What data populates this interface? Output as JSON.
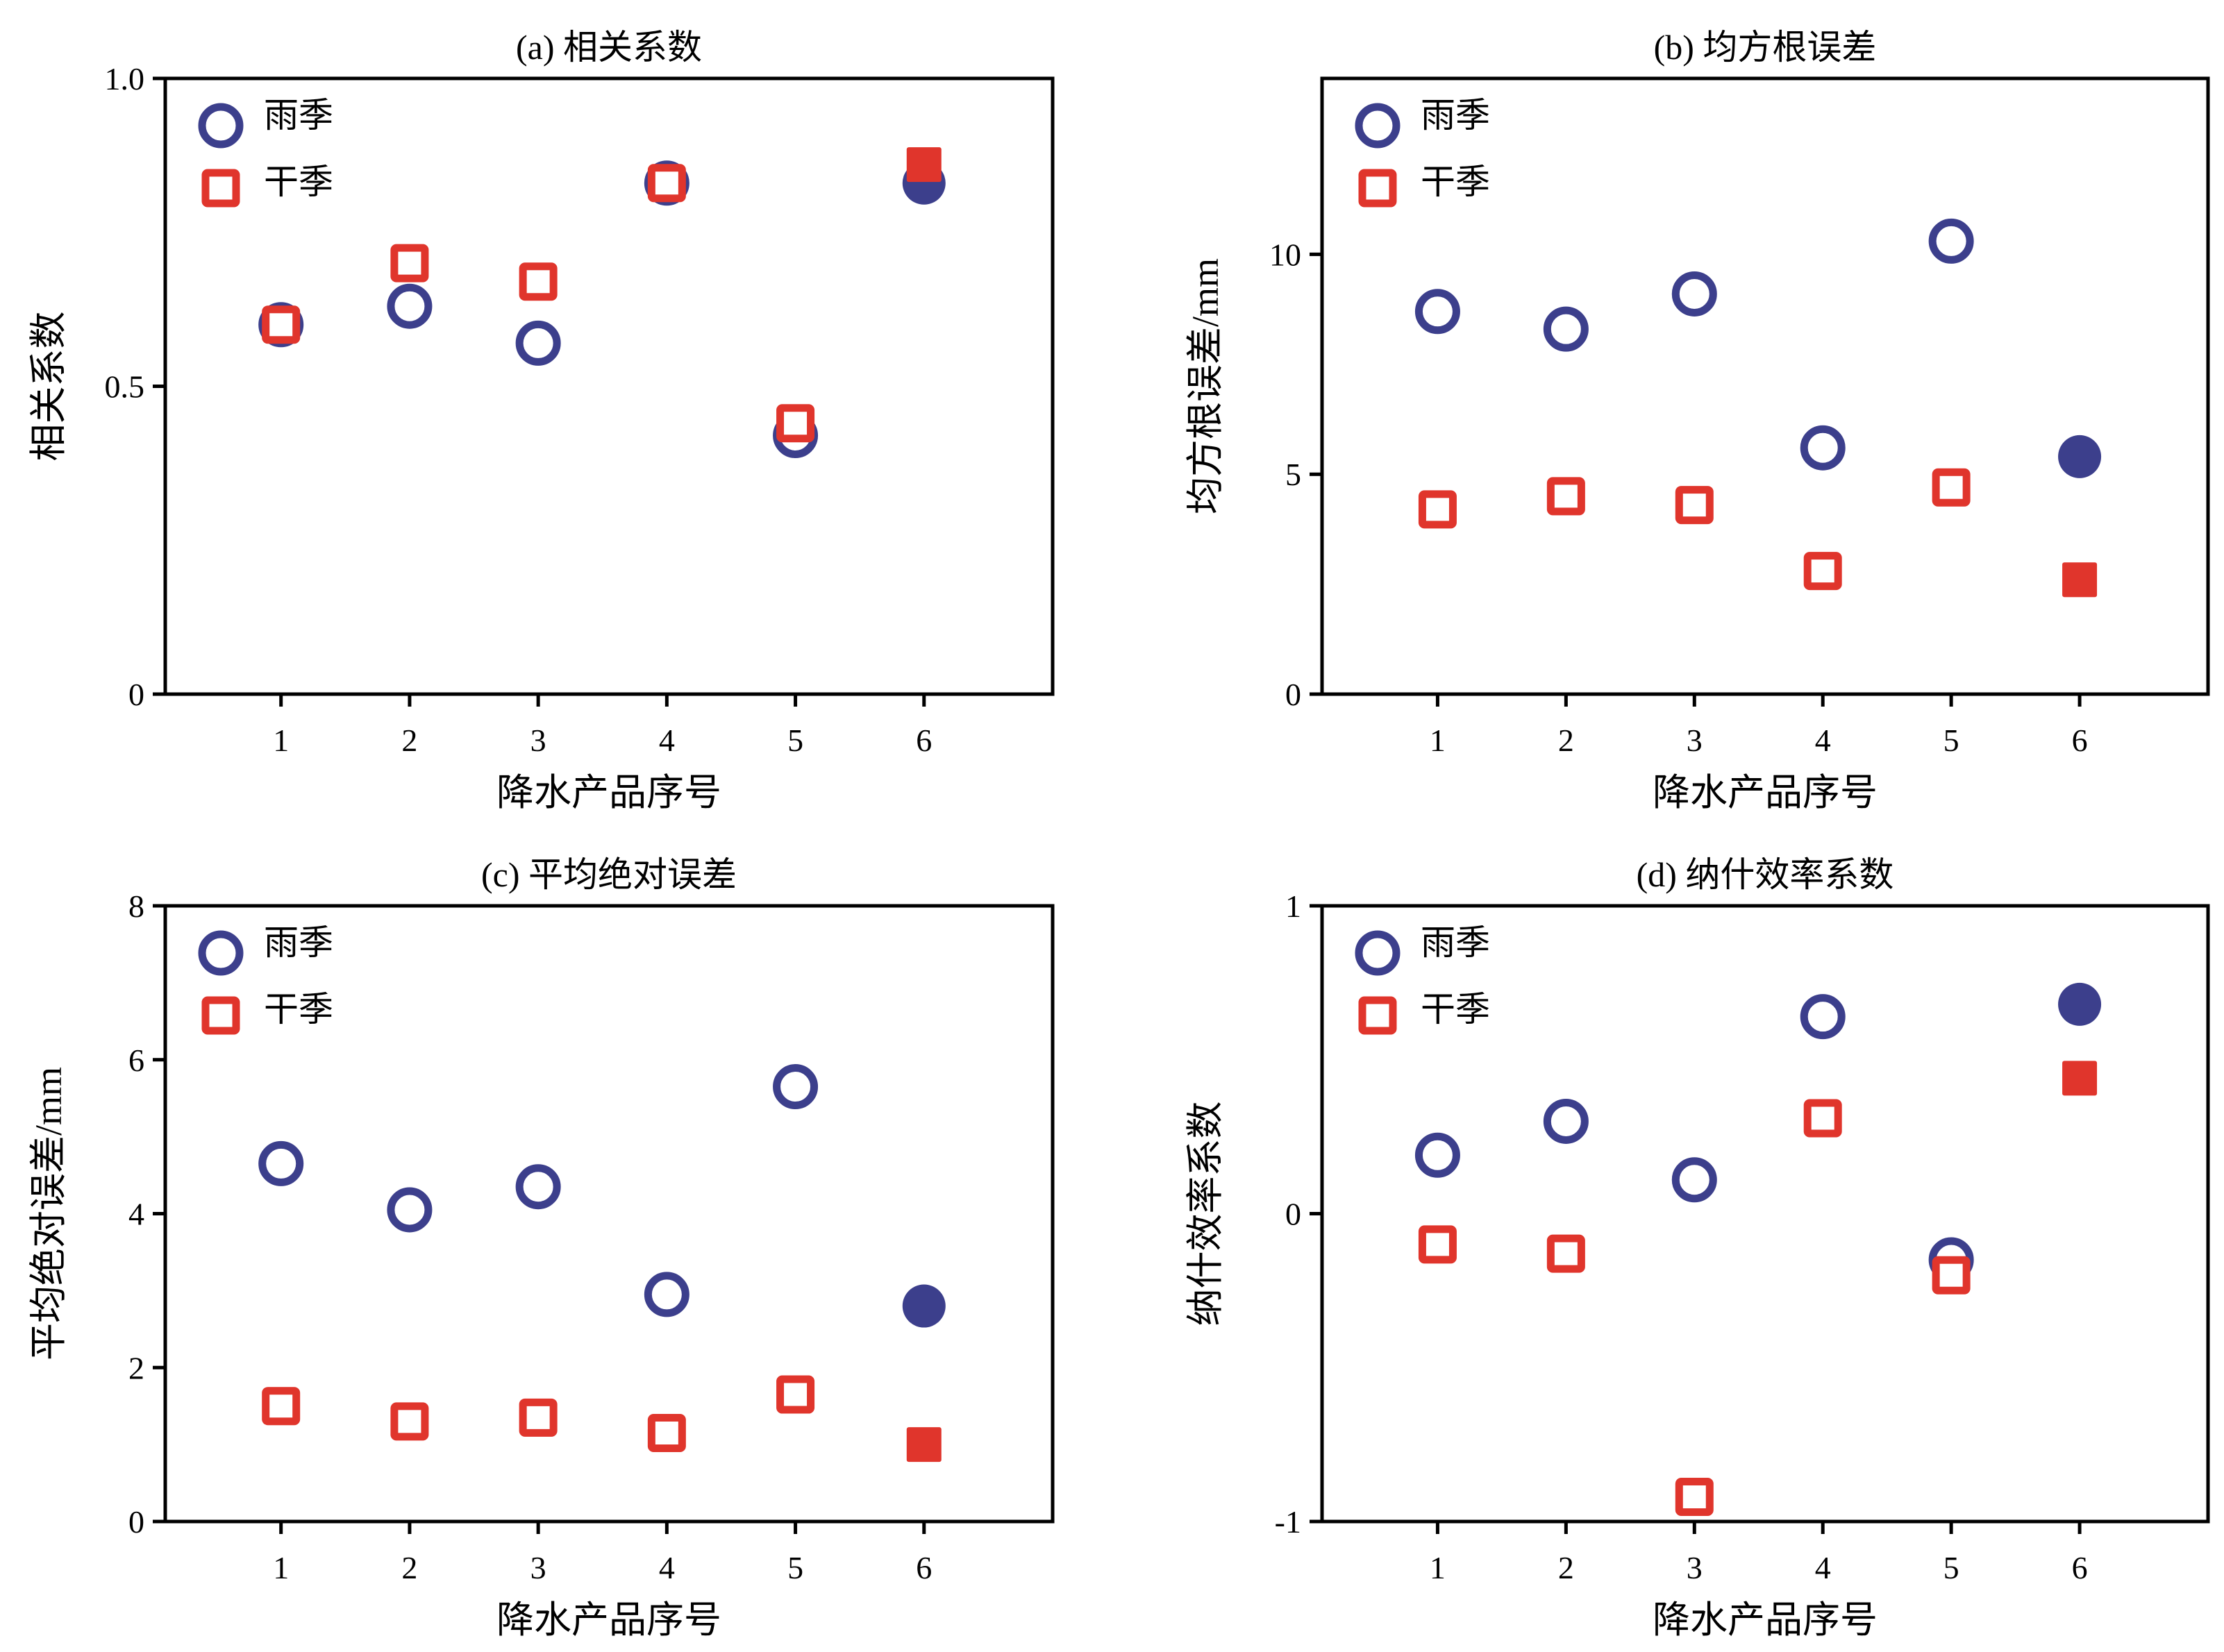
{
  "legend": {
    "rainy_label": "雨季",
    "dry_label": "干季"
  },
  "colors": {
    "rainy": "#3c3f8c",
    "dry": "#e0352c",
    "axis": "#000000"
  },
  "markers": {
    "rainy": "open-circle; filled-circle for product 6",
    "dry": "open-square; filled-square for product 6"
  },
  "chart_data": [
    {
      "id": "a",
      "type": "scatter",
      "title": "(a) 相关系数",
      "xlabel": "降水产品序号",
      "ylabel": "相关系数",
      "x": [
        1,
        2,
        3,
        4,
        5,
        6
      ],
      "x_ticks": [
        "1",
        "2",
        "3",
        "4",
        "5",
        "6"
      ],
      "xlim": [
        0.1,
        7.0
      ],
      "ylim": [
        0,
        1.0
      ],
      "y_ticks": [
        0,
        0.5,
        1.0
      ],
      "y_tick_labels": [
        "0",
        "0.5",
        "1.0"
      ],
      "legend_position": "top-left",
      "grid": false,
      "series": [
        {
          "name": "雨季",
          "values": [
            0.6,
            0.63,
            0.57,
            0.83,
            0.42,
            0.83
          ]
        },
        {
          "name": "干季",
          "values": [
            0.6,
            0.7,
            0.67,
            0.83,
            0.44,
            0.86
          ]
        }
      ]
    },
    {
      "id": "b",
      "type": "scatter",
      "title": "(b) 均方根误差",
      "xlabel": "降水产品序号",
      "ylabel": "均方根误差/mm",
      "x": [
        1,
        2,
        3,
        4,
        5,
        6
      ],
      "x_ticks": [
        "1",
        "2",
        "3",
        "4",
        "5",
        "6"
      ],
      "xlim": [
        0.1,
        7.0
      ],
      "ylim": [
        0,
        14
      ],
      "y_ticks": [
        0,
        5,
        10
      ],
      "y_tick_labels": [
        "0",
        "5",
        "10"
      ],
      "legend_position": "top-left",
      "grid": false,
      "series": [
        {
          "name": "雨季",
          "values": [
            8.7,
            8.3,
            9.1,
            5.6,
            10.3,
            5.4
          ]
        },
        {
          "name": "干季",
          "values": [
            4.2,
            4.5,
            4.3,
            2.8,
            4.7,
            2.6
          ]
        }
      ]
    },
    {
      "id": "c",
      "type": "scatter",
      "title": "(c) 平均绝对误差",
      "xlabel": "降水产品序号",
      "ylabel": "平均绝对误差/mm",
      "x": [
        1,
        2,
        3,
        4,
        5,
        6
      ],
      "x_ticks": [
        "1",
        "2",
        "3",
        "4",
        "5",
        "6"
      ],
      "xlim": [
        0.1,
        7.0
      ],
      "ylim": [
        0,
        8
      ],
      "y_ticks": [
        0,
        2,
        4,
        6,
        8
      ],
      "y_tick_labels": [
        "0",
        "2",
        "4",
        "6",
        "8"
      ],
      "legend_position": "top-left",
      "grid": false,
      "series": [
        {
          "name": "雨季",
          "values": [
            4.65,
            4.05,
            4.35,
            2.95,
            5.65,
            2.8
          ]
        },
        {
          "name": "干季",
          "values": [
            1.5,
            1.3,
            1.35,
            1.15,
            1.65,
            1.0
          ]
        }
      ]
    },
    {
      "id": "d",
      "type": "scatter",
      "title": "(d) 纳什效率系数",
      "xlabel": "降水产品序号",
      "ylabel": "纳什效率系数",
      "x": [
        1,
        2,
        3,
        4,
        5,
        6
      ],
      "x_ticks": [
        "1",
        "2",
        "3",
        "4",
        "5",
        "6"
      ],
      "xlim": [
        0.1,
        7.0
      ],
      "ylim": [
        -1,
        1
      ],
      "y_ticks": [
        -1,
        0,
        1
      ],
      "y_tick_labels": [
        "-1",
        "0",
        "1"
      ],
      "legend_position": "top-left",
      "grid": false,
      "series": [
        {
          "name": "雨季",
          "values": [
            0.19,
            0.3,
            0.11,
            0.64,
            -0.15,
            0.68
          ]
        },
        {
          "name": "干季",
          "values": [
            -0.1,
            -0.13,
            -0.92,
            0.31,
            -0.2,
            0.44
          ]
        }
      ]
    }
  ]
}
